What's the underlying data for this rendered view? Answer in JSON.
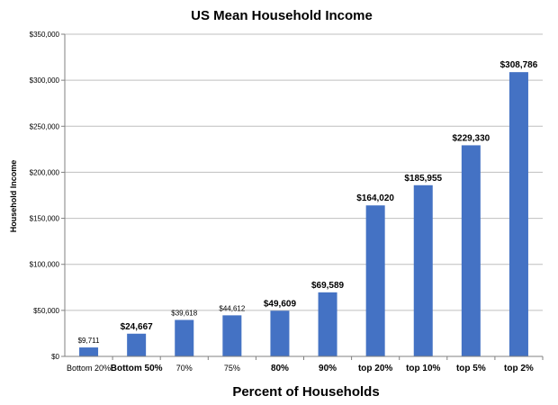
{
  "chart_data": {
    "type": "bar",
    "title": "US Mean Household Income",
    "xlabel": "Percent of Households",
    "ylabel": "Household Income",
    "categories": [
      "Bottom 20%",
      "Bottom 50%",
      "70%",
      "75%",
      "80%",
      "90%",
      "top 20%",
      "top 10%",
      "top 5%",
      "top 2%"
    ],
    "values": [
      9711,
      24667,
      39618,
      44612,
      49609,
      69589,
      164020,
      185955,
      229330,
      308786
    ],
    "value_labels": [
      "$9,711",
      "$24,667",
      "$39,618",
      "$44,612",
      "$49,609",
      "$69,589",
      "$164,020",
      "$185,955",
      "$229,330",
      "$308,786"
    ],
    "emphasized_labels": [
      false,
      true,
      false,
      false,
      true,
      true,
      true,
      true,
      true,
      true
    ],
    "ylim": [
      0,
      350000
    ],
    "yticks": [
      0,
      50000,
      100000,
      150000,
      200000,
      250000,
      300000,
      350000
    ],
    "ytick_labels": [
      "$0",
      "$50,000",
      "$100,000",
      "$150,000",
      "$200,000",
      "$250,000",
      "$300,000",
      "$350,000"
    ],
    "grid": true,
    "legend": "none",
    "bar_color": "#4472C4",
    "grid_color": "#bfbfbf"
  }
}
